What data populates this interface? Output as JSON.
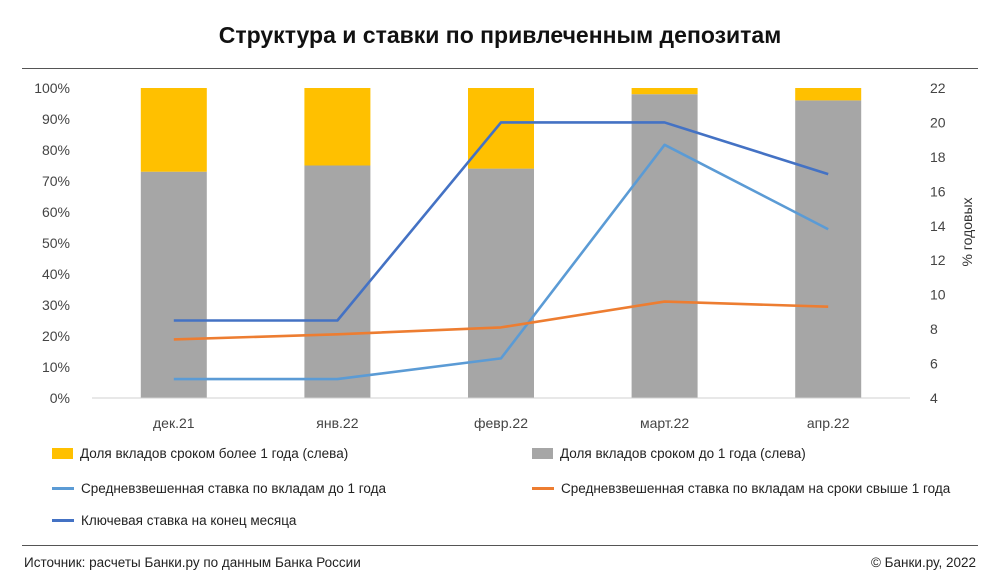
{
  "chart_data": {
    "type": "bar",
    "title": "Структура и ставки по привлеченным депозитам",
    "categories": [
      "дек.21",
      "янв.22",
      "февр.22",
      "март.22",
      "апр.22"
    ],
    "y_left": {
      "ticks": [
        "0%",
        "10%",
        "20%",
        "30%",
        "40%",
        "50%",
        "60%",
        "70%",
        "80%",
        "90%",
        "100%"
      ],
      "ylim": [
        0,
        100
      ]
    },
    "y_right": {
      "label": "% годовых",
      "ticks": [
        "4",
        "6",
        "8",
        "10",
        "12",
        "14",
        "16",
        "18",
        "20",
        "22"
      ],
      "ylim": [
        4,
        22
      ]
    },
    "bar_series": [
      {
        "name": "Доля вкладов сроком до 1 года (слева)",
        "color": "#a6a6a6",
        "values": [
          73,
          75,
          74,
          98,
          96
        ]
      },
      {
        "name": "Доля вкладов сроком более 1 года (слева)",
        "color": "#ffc000",
        "values": [
          27,
          25,
          26,
          2,
          4
        ]
      }
    ],
    "line_series": [
      {
        "name": "Средневзвешенная ставка по вкладам до 1 года",
        "color": "#5b9bd5",
        "values": [
          5.1,
          5.1,
          6.3,
          18.7,
          13.8
        ]
      },
      {
        "name": "Средневзвешенная ставка по вкладам на сроки свыше 1 года",
        "color": "#ed7d31",
        "values": [
          7.4,
          7.7,
          8.1,
          9.6,
          9.3
        ]
      },
      {
        "name": "Ключевая ставка на конец месяца",
        "color": "#4472c4",
        "values": [
          8.5,
          8.5,
          20,
          20,
          17
        ]
      }
    ],
    "grid": false,
    "legend_position": "bottom"
  },
  "legend": [
    {
      "label": "Доля вкладов сроком более 1 года (слева)",
      "color": "#ffc000",
      "kind": "box"
    },
    {
      "label": "Доля вкладов сроком до 1 года (слева)",
      "color": "#a6a6a6",
      "kind": "box"
    },
    {
      "label": "Средневзвешенная ставка по вкладам до 1 года",
      "color": "#5b9bd5",
      "kind": "line"
    },
    {
      "label": "Средневзвешенная ставка по вкладам на сроки свыше 1 года",
      "color": "#ed7d31",
      "kind": "line"
    },
    {
      "label": "Ключевая ставка на конец месяца",
      "color": "#4472c4",
      "kind": "line"
    }
  ],
  "footer": {
    "source": "Источник: расчеты Банки.ру по данным Банка России",
    "copyright": "© Банки.ру, 2022"
  }
}
